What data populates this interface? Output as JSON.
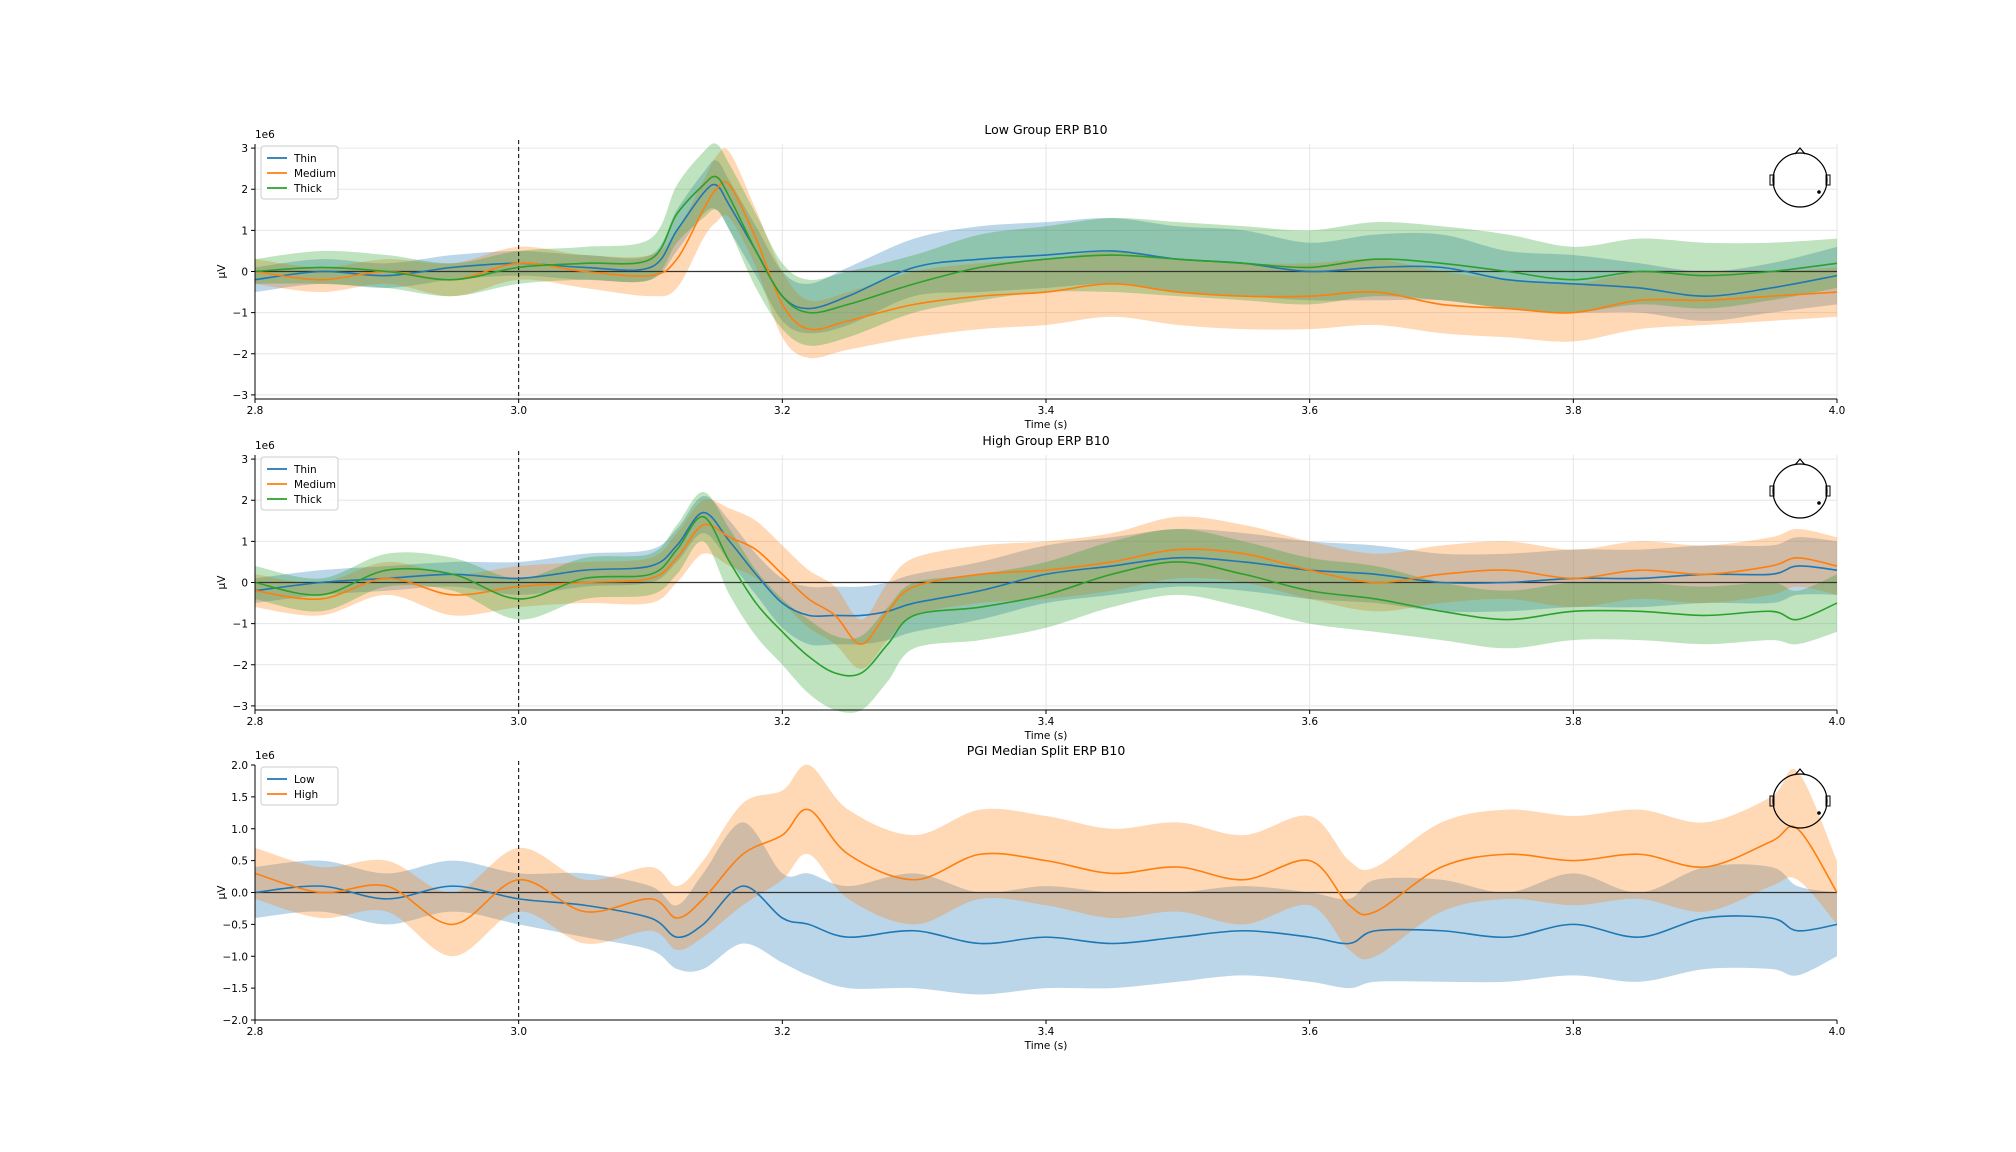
{
  "figure": {
    "colors": {
      "blue": "#1f77b4",
      "orange": "#ff7f0e",
      "green": "#2ca02c"
    },
    "vline_at": 3.0,
    "panels": [
      {
        "title": "Low Group ERP B10",
        "xlabel": "Time (s)",
        "ylabel": "µV",
        "offset_text": "1e6",
        "xlim": [
          2.8,
          4.0
        ],
        "ylim": [
          -3.1,
          3.1
        ],
        "xticks": [
          "2.8",
          "3.0",
          "3.2",
          "3.4",
          "3.6",
          "3.8",
          "4.0"
        ],
        "yticks": [
          "3",
          "2",
          "1",
          "0",
          "−1",
          "−2",
          "−3"
        ],
        "legend": [
          "Thin",
          "Medium",
          "Thick"
        ],
        "legend_position": "upper-left",
        "head_icon": "topomap-head-icon"
      },
      {
        "title": "High Group ERP B10",
        "xlabel": "Time (s)",
        "ylabel": "µV",
        "offset_text": "1e6",
        "xlim": [
          2.8,
          4.0
        ],
        "ylim": [
          -3.1,
          3.1
        ],
        "xticks": [
          "2.8",
          "3.0",
          "3.2",
          "3.4",
          "3.6",
          "3.8",
          "4.0"
        ],
        "yticks": [
          "3",
          "2",
          "1",
          "0",
          "−1",
          "−2",
          "−3"
        ],
        "legend": [
          "Thin",
          "Medium",
          "Thick"
        ],
        "legend_position": "upper-left",
        "head_icon": "topomap-head-icon"
      },
      {
        "title": "PGI Median Split ERP B10",
        "xlabel": "Time (s)",
        "ylabel": "µV",
        "offset_text": "1e6",
        "xlim": [
          2.8,
          4.0
        ],
        "ylim": [
          -2.0,
          2.0
        ],
        "xticks": [
          "2.8",
          "3.0",
          "3.2",
          "3.4",
          "3.6",
          "3.8",
          "4.0"
        ],
        "yticks": [
          "2.0",
          "1.5",
          "1.0",
          "0.5",
          "0.0",
          "−0.5",
          "−1.0",
          "−1.5",
          "−2.0"
        ],
        "legend": [
          "Low",
          "High"
        ],
        "legend_position": "upper-left",
        "head_icon": "topomap-head-icon"
      }
    ]
  },
  "chart_data": [
    {
      "type": "line",
      "title": "Low Group ERP B10",
      "xlabel": "Time (s)",
      "ylabel": "µV",
      "y_scale_factor": "1e6",
      "xlim": [
        2.8,
        4.0
      ],
      "ylim": [
        -3.1,
        3.1
      ],
      "grid": true,
      "legend_position": "upper-left",
      "vline_x": 3.0,
      "hline_y": 0,
      "x": [
        2.8,
        2.85,
        2.9,
        2.95,
        3.0,
        3.05,
        3.1,
        3.12,
        3.14,
        3.15,
        3.16,
        3.18,
        3.2,
        3.22,
        3.25,
        3.3,
        3.35,
        3.4,
        3.45,
        3.5,
        3.55,
        3.6,
        3.65,
        3.7,
        3.75,
        3.8,
        3.85,
        3.9,
        3.95,
        4.0
      ],
      "series": [
        {
          "name": "Thin",
          "color": "#1f77b4",
          "values": [
            -0.2,
            0.0,
            -0.1,
            0.1,
            0.2,
            0.1,
            0.1,
            1.0,
            1.9,
            2.1,
            1.6,
            0.5,
            -0.6,
            -0.9,
            -0.6,
            0.1,
            0.3,
            0.4,
            0.5,
            0.3,
            0.2,
            0.0,
            0.1,
            0.1,
            -0.2,
            -0.3,
            -0.4,
            -0.6,
            -0.4,
            -0.1
          ],
          "lower": [
            -0.5,
            -0.3,
            -0.4,
            -0.2,
            -0.1,
            -0.2,
            -0.2,
            0.5,
            1.4,
            1.5,
            1.0,
            -0.1,
            -1.2,
            -1.5,
            -1.3,
            -0.6,
            -0.5,
            -0.4,
            -0.3,
            -0.5,
            -0.6,
            -0.7,
            -0.7,
            -0.7,
            -0.9,
            -1.0,
            -1.0,
            -1.2,
            -1.0,
            -0.8
          ],
          "upper": [
            0.1,
            0.3,
            0.2,
            0.4,
            0.5,
            0.4,
            0.4,
            1.5,
            2.4,
            2.7,
            2.2,
            1.1,
            0.0,
            -0.3,
            0.1,
            0.8,
            1.1,
            1.2,
            1.3,
            1.1,
            1.0,
            0.7,
            0.9,
            0.9,
            0.5,
            0.4,
            0.2,
            0.0,
            0.2,
            0.6
          ]
        },
        {
          "name": "Medium",
          "color": "#ff7f0e",
          "values": [
            0.0,
            -0.2,
            0.0,
            -0.2,
            0.2,
            0.0,
            -0.1,
            0.3,
            1.5,
            2.0,
            2.1,
            0.8,
            -0.8,
            -1.4,
            -1.2,
            -0.8,
            -0.6,
            -0.5,
            -0.3,
            -0.5,
            -0.6,
            -0.6,
            -0.5,
            -0.8,
            -0.9,
            -1.0,
            -0.7,
            -0.7,
            -0.6,
            -0.5
          ],
          "lower": [
            -0.3,
            -0.5,
            -0.3,
            -0.6,
            -0.2,
            -0.4,
            -0.6,
            -0.4,
            0.8,
            1.2,
            1.3,
            0.1,
            -1.6,
            -2.1,
            -1.9,
            -1.6,
            -1.4,
            -1.3,
            -1.1,
            -1.3,
            -1.4,
            -1.4,
            -1.3,
            -1.5,
            -1.6,
            -1.7,
            -1.4,
            -1.3,
            -1.2,
            -1.1
          ],
          "upper": [
            0.3,
            0.1,
            0.3,
            0.2,
            0.6,
            0.4,
            0.4,
            1.0,
            2.2,
            2.8,
            2.9,
            1.5,
            0.0,
            -0.7,
            -0.5,
            0.0,
            0.2,
            0.3,
            0.5,
            0.3,
            0.2,
            0.2,
            0.3,
            0.0,
            -0.2,
            -0.3,
            0.0,
            0.0,
            0.0,
            0.1
          ]
        },
        {
          "name": "Thick",
          "color": "#2ca02c",
          "values": [
            0.0,
            0.1,
            0.0,
            -0.2,
            0.1,
            0.2,
            0.3,
            1.4,
            2.1,
            2.3,
            1.8,
            0.5,
            -0.6,
            -1.0,
            -0.8,
            -0.3,
            0.1,
            0.3,
            0.4,
            0.3,
            0.2,
            0.1,
            0.3,
            0.2,
            0.0,
            -0.2,
            0.0,
            -0.1,
            0.0,
            0.2
          ],
          "lower": [
            -0.3,
            -0.3,
            -0.4,
            -0.6,
            -0.3,
            -0.2,
            -0.2,
            0.7,
            1.3,
            1.5,
            1.0,
            -0.4,
            -1.4,
            -1.8,
            -1.6,
            -1.0,
            -0.7,
            -0.5,
            -0.5,
            -0.6,
            -0.7,
            -0.8,
            -0.6,
            -0.7,
            -0.9,
            -1.0,
            -0.8,
            -0.9,
            -0.7,
            -0.4
          ],
          "upper": [
            0.3,
            0.5,
            0.4,
            0.2,
            0.5,
            0.6,
            0.8,
            2.1,
            2.9,
            3.1,
            2.6,
            1.4,
            0.2,
            -0.2,
            0.0,
            0.4,
            0.9,
            1.1,
            1.3,
            1.2,
            1.1,
            1.0,
            1.2,
            1.1,
            0.9,
            0.6,
            0.8,
            0.7,
            0.7,
            0.8
          ]
        }
      ]
    },
    {
      "type": "line",
      "title": "High Group ERP B10",
      "xlabel": "Time (s)",
      "ylabel": "µV",
      "y_scale_factor": "1e6",
      "xlim": [
        2.8,
        4.0
      ],
      "ylim": [
        -3.1,
        3.1
      ],
      "grid": true,
      "legend_position": "upper-left",
      "vline_x": 3.0,
      "hline_y": 0,
      "x": [
        2.8,
        2.85,
        2.9,
        2.95,
        3.0,
        3.05,
        3.1,
        3.12,
        3.14,
        3.16,
        3.18,
        3.2,
        3.22,
        3.24,
        3.26,
        3.28,
        3.3,
        3.35,
        3.4,
        3.45,
        3.5,
        3.55,
        3.6,
        3.65,
        3.7,
        3.75,
        3.8,
        3.85,
        3.9,
        3.95,
        3.97,
        4.0
      ],
      "series": [
        {
          "name": "Thin",
          "color": "#1f77b4",
          "values": [
            -0.2,
            0.0,
            0.1,
            0.2,
            0.1,
            0.3,
            0.4,
            0.9,
            1.7,
            1.0,
            0.2,
            -0.5,
            -0.8,
            -0.8,
            -0.8,
            -0.7,
            -0.5,
            -0.2,
            0.2,
            0.4,
            0.6,
            0.5,
            0.3,
            0.2,
            0.0,
            0.0,
            0.1,
            0.1,
            0.2,
            0.2,
            0.4,
            0.3
          ],
          "lower": [
            -0.5,
            -0.3,
            -0.2,
            -0.1,
            -0.3,
            -0.1,
            0.0,
            0.5,
            1.2,
            0.5,
            -0.3,
            -1.1,
            -1.5,
            -1.5,
            -1.5,
            -1.4,
            -1.2,
            -0.9,
            -0.5,
            -0.3,
            -0.1,
            -0.2,
            -0.4,
            -0.5,
            -0.7,
            -0.7,
            -0.6,
            -0.6,
            -0.5,
            -0.5,
            -0.3,
            -0.3
          ],
          "upper": [
            0.1,
            0.3,
            0.4,
            0.5,
            0.5,
            0.7,
            0.8,
            1.3,
            2.1,
            1.5,
            0.7,
            0.1,
            -0.1,
            -0.1,
            -0.1,
            0.0,
            0.2,
            0.5,
            0.9,
            1.1,
            1.3,
            1.2,
            1.0,
            0.9,
            0.7,
            0.7,
            0.8,
            0.8,
            0.9,
            0.9,
            1.1,
            1.0
          ]
        },
        {
          "name": "Medium",
          "color": "#ff7f0e",
          "values": [
            -0.2,
            -0.4,
            0.1,
            -0.3,
            -0.1,
            0.0,
            0.1,
            0.6,
            1.4,
            1.1,
            0.8,
            0.2,
            -0.4,
            -0.8,
            -1.5,
            -0.7,
            -0.1,
            0.2,
            0.3,
            0.5,
            0.8,
            0.7,
            0.3,
            0.0,
            0.2,
            0.3,
            0.1,
            0.3,
            0.2,
            0.4,
            0.6,
            0.4
          ],
          "lower": [
            -0.6,
            -0.8,
            -0.3,
            -0.8,
            -0.6,
            -0.5,
            -0.5,
            0.0,
            0.7,
            0.4,
            0.1,
            -0.5,
            -1.1,
            -1.5,
            -2.1,
            -1.4,
            -0.8,
            -0.5,
            -0.4,
            -0.2,
            0.1,
            0.0,
            -0.4,
            -0.7,
            -0.5,
            -0.4,
            -0.6,
            -0.4,
            -0.5,
            -0.3,
            -0.1,
            -0.3
          ],
          "upper": [
            0.2,
            0.0,
            0.5,
            0.2,
            0.4,
            0.5,
            0.6,
            1.2,
            2.0,
            1.8,
            1.5,
            0.9,
            0.3,
            -0.1,
            -0.9,
            0.0,
            0.6,
            0.9,
            1.0,
            1.2,
            1.6,
            1.4,
            1.0,
            0.7,
            0.9,
            1.0,
            0.8,
            1.0,
            0.9,
            1.1,
            1.3,
            1.1
          ]
        },
        {
          "name": "Thick",
          "color": "#2ca02c",
          "values": [
            0.0,
            -0.3,
            0.3,
            0.2,
            -0.4,
            0.1,
            0.2,
            0.8,
            1.6,
            0.5,
            -0.5,
            -1.2,
            -1.8,
            -2.2,
            -2.2,
            -1.5,
            -0.8,
            -0.6,
            -0.3,
            0.2,
            0.5,
            0.2,
            -0.2,
            -0.4,
            -0.7,
            -0.9,
            -0.7,
            -0.7,
            -0.8,
            -0.7,
            -0.9,
            -0.5
          ],
          "lower": [
            -0.4,
            -0.7,
            -0.1,
            -0.2,
            -0.9,
            -0.4,
            -0.3,
            0.2,
            1.0,
            -0.3,
            -1.3,
            -2.0,
            -2.7,
            -3.1,
            -3.1,
            -2.4,
            -1.6,
            -1.4,
            -1.1,
            -0.6,
            -0.3,
            -0.6,
            -1.0,
            -1.2,
            -1.4,
            -1.6,
            -1.4,
            -1.4,
            -1.5,
            -1.4,
            -1.5,
            -1.2
          ],
          "upper": [
            0.4,
            0.1,
            0.7,
            0.6,
            0.1,
            0.6,
            0.7,
            1.4,
            2.2,
            1.3,
            0.3,
            -0.4,
            -0.9,
            -1.3,
            -1.3,
            -0.6,
            0.0,
            0.2,
            0.5,
            1.0,
            1.3,
            1.0,
            0.6,
            0.4,
            0.0,
            -0.2,
            0.0,
            0.0,
            -0.1,
            0.0,
            -0.2,
            0.2
          ]
        }
      ]
    },
    {
      "type": "line",
      "title": "PGI Median Split ERP B10",
      "xlabel": "Time (s)",
      "ylabel": "µV",
      "y_scale_factor": "1e6",
      "xlim": [
        2.8,
        4.0
      ],
      "ylim": [
        -2.0,
        2.0
      ],
      "grid": false,
      "legend_position": "upper-left",
      "vline_x": 3.0,
      "hline_y": 0,
      "x": [
        2.8,
        2.85,
        2.9,
        2.95,
        3.0,
        3.05,
        3.1,
        3.12,
        3.14,
        3.17,
        3.2,
        3.22,
        3.25,
        3.3,
        3.35,
        3.4,
        3.45,
        3.5,
        3.55,
        3.6,
        3.63,
        3.65,
        3.7,
        3.75,
        3.8,
        3.85,
        3.9,
        3.95,
        3.97,
        4.0
      ],
      "series": [
        {
          "name": "Low",
          "color": "#1f77b4",
          "values": [
            0.0,
            0.1,
            -0.1,
            0.1,
            -0.1,
            -0.2,
            -0.4,
            -0.7,
            -0.5,
            0.1,
            -0.4,
            -0.5,
            -0.7,
            -0.6,
            -0.8,
            -0.7,
            -0.8,
            -0.7,
            -0.6,
            -0.7,
            -0.8,
            -0.6,
            -0.6,
            -0.7,
            -0.5,
            -0.7,
            -0.4,
            -0.4,
            -0.6,
            -0.5
          ],
          "lower": [
            -0.4,
            -0.3,
            -0.5,
            -0.3,
            -0.5,
            -0.7,
            -0.9,
            -1.2,
            -1.2,
            -0.8,
            -1.1,
            -1.3,
            -1.5,
            -1.5,
            -1.6,
            -1.5,
            -1.5,
            -1.4,
            -1.3,
            -1.4,
            -1.5,
            -1.4,
            -1.4,
            -1.4,
            -1.3,
            -1.4,
            -1.2,
            -1.2,
            -1.3,
            -1.0
          ],
          "upper": [
            0.4,
            0.5,
            0.3,
            0.5,
            0.3,
            0.3,
            0.1,
            -0.2,
            0.3,
            1.1,
            0.3,
            0.3,
            0.1,
            0.3,
            0.0,
            0.1,
            0.0,
            0.0,
            0.1,
            0.0,
            -0.1,
            0.2,
            0.2,
            0.0,
            0.3,
            0.0,
            0.4,
            0.4,
            0.1,
            0.0
          ]
        },
        {
          "name": "High",
          "color": "#ff7f0e",
          "values": [
            0.3,
            0.0,
            0.1,
            -0.5,
            0.2,
            -0.3,
            -0.1,
            -0.4,
            -0.1,
            0.6,
            0.9,
            1.3,
            0.6,
            0.2,
            0.6,
            0.5,
            0.3,
            0.4,
            0.2,
            0.5,
            -0.2,
            -0.3,
            0.4,
            0.6,
            0.5,
            0.6,
            0.4,
            0.8,
            1.0,
            0.0
          ],
          "lower": [
            -0.1,
            -0.4,
            -0.3,
            -1.0,
            -0.3,
            -0.8,
            -0.6,
            -0.9,
            -0.7,
            -0.2,
            0.2,
            0.6,
            -0.1,
            -0.5,
            -0.1,
            -0.2,
            -0.4,
            -0.3,
            -0.5,
            -0.2,
            -0.9,
            -1.0,
            -0.3,
            -0.1,
            -0.2,
            -0.1,
            -0.3,
            0.1,
            0.2,
            -0.5
          ],
          "upper": [
            0.7,
            0.4,
            0.5,
            0.0,
            0.7,
            0.2,
            0.4,
            0.1,
            0.5,
            1.4,
            1.6,
            2.0,
            1.3,
            0.9,
            1.3,
            1.2,
            1.0,
            1.1,
            0.9,
            1.2,
            0.5,
            0.4,
            1.1,
            1.3,
            1.2,
            1.3,
            1.1,
            1.5,
            1.9,
            0.5
          ]
        }
      ]
    }
  ]
}
